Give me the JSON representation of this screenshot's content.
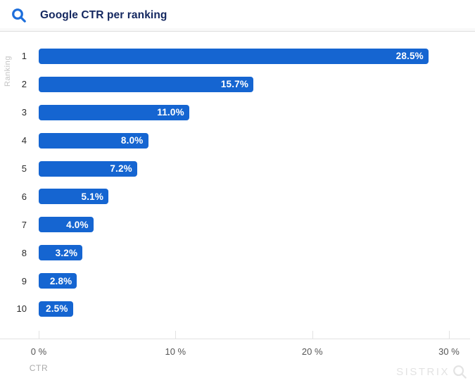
{
  "header": {
    "title": "Google CTR per ranking"
  },
  "chart_data": {
    "type": "bar",
    "orientation": "horizontal",
    "title": "Google CTR per ranking",
    "categories": [
      "1",
      "2",
      "3",
      "4",
      "5",
      "6",
      "7",
      "8",
      "9",
      "10"
    ],
    "values": [
      28.5,
      15.7,
      11.0,
      8.0,
      7.2,
      5.1,
      4.0,
      3.2,
      2.8,
      2.5
    ],
    "value_labels": [
      "28.5%",
      "15.7%",
      "11.0%",
      "8.0%",
      "7.2%",
      "5.1%",
      "4.0%",
      "3.2%",
      "2.8%",
      "2.5%"
    ],
    "xlabel": "CTR",
    "ylabel": "Ranking",
    "x_ticks": [
      "0 %",
      "10 %",
      "20 %",
      "30 %"
    ],
    "x_tick_values": [
      0,
      10,
      20,
      30
    ],
    "xlim": [
      0,
      30
    ],
    "grid": false,
    "legend": "none",
    "value_label_position": "inside-end"
  },
  "watermark": {
    "text": "SISTRIX"
  },
  "colors": {
    "background": "#ffffff",
    "bar_blue": "#1565d1",
    "icon_blue": "#1d6edb",
    "title_navy": "#13275f",
    "value_text": "#ffffff",
    "category_text": "#2b2b2b",
    "tick_text": "#555555",
    "muted_text": "#aaaaaa",
    "axis_muted": "#c4c4c4",
    "axis_line": "#e2e2e2",
    "divider": "#dedede",
    "watermark": "#e3e3e3"
  }
}
